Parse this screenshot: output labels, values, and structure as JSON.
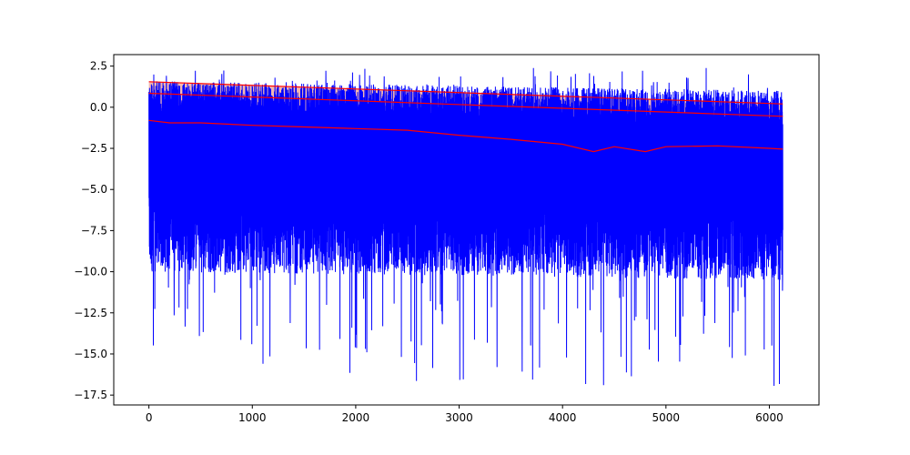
{
  "chart_data": {
    "type": "line",
    "title": "",
    "xlabel": "",
    "ylabel": "",
    "xlim": [
      -340,
      6480
    ],
    "ylim": [
      -18.1,
      3.2
    ],
    "x_ticks": [
      0,
      1000,
      2000,
      3000,
      4000,
      5000,
      6000
    ],
    "y_ticks": [
      2.5,
      0.0,
      -2.5,
      -5.0,
      -7.5,
      -10.0,
      -12.5,
      -15.0,
      -17.5
    ],
    "x_tick_labels": [
      "0",
      "1000",
      "2000",
      "3000",
      "4000",
      "5000",
      "6000"
    ],
    "y_tick_labels": [
      "2.5",
      "0.0",
      "−2.5",
      "−5.0",
      "−7.5",
      "−10.0",
      "−12.5",
      "−15.0",
      "−17.5"
    ],
    "grid": false,
    "n_points": 6130,
    "series": [
      {
        "role": "signal",
        "color": "#0000ff",
        "x_range": [
          0,
          6130
        ],
        "upper_envelope_start": 1.6,
        "upper_envelope_end": 1.0,
        "lower_envelope_start": -10.0,
        "lower_envelope_end": -10.5,
        "min_value": -17.0,
        "max_value": 2.4
      },
      {
        "role": "rolling-mean",
        "color": "#ff0000",
        "x": [
          0,
          200,
          500,
          1000,
          1500,
          2000,
          2500,
          3000,
          3500,
          4000,
          4300,
          4500,
          4800,
          5000,
          5500,
          6000,
          6130
        ],
        "values": [
          -0.8,
          -0.95,
          -0.95,
          -1.1,
          -1.2,
          -1.3,
          -1.4,
          -1.7,
          -1.95,
          -2.25,
          -2.7,
          -2.4,
          -2.7,
          -2.4,
          -2.35,
          -2.5,
          -2.55
        ]
      },
      {
        "role": "band-upper",
        "color": "#ff0000",
        "x": [
          0,
          6130
        ],
        "values": [
          1.55,
          0.2
        ]
      },
      {
        "role": "band-middle",
        "color": "#ff0000",
        "x": [
          0,
          6130
        ],
        "values": [
          0.85,
          -0.55
        ]
      }
    ],
    "band_fill": "#f4b8b0"
  }
}
